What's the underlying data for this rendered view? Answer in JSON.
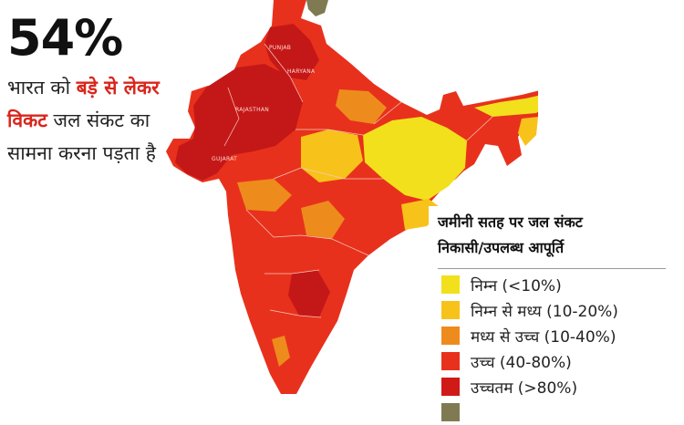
{
  "headline": {
    "percent": "54%",
    "caption_pre": "भारत को ",
    "caption_hl": "बड़े से लेकर विकट",
    "caption_post": " जल संकट का सामना करना पड़ता है"
  },
  "legend": {
    "title_line1": "जमीनी सतह पर जल संकट",
    "title_line2": "निकासी/उपलब्ध आपूर्ति",
    "items": [
      {
        "label": "निम्न (<10%)",
        "color": "#f2e01c"
      },
      {
        "label": "निम्न से मध्य (10-20%)",
        "color": "#f7c21a"
      },
      {
        "label": "मध्य से उच्च (10-40%)",
        "color": "#ee8b1d"
      },
      {
        "label": "उच्च (40-80%)",
        "color": "#e8311c"
      },
      {
        "label": "उच्चतम (>80%)",
        "color": "#cf1a18"
      },
      {
        "label": "",
        "color": "#7f7a52"
      }
    ]
  },
  "map": {
    "state_labels": [
      "PUNJAB",
      "HARYANA",
      "RAJASTHAN",
      "GUJARAT"
    ],
    "colors": {
      "high": "#e8311c",
      "very_high": "#c41818",
      "medium": "#ee8b1d",
      "low_medium": "#f7c21a",
      "low": "#f2e01c",
      "arid": "#7f7a52"
    }
  }
}
